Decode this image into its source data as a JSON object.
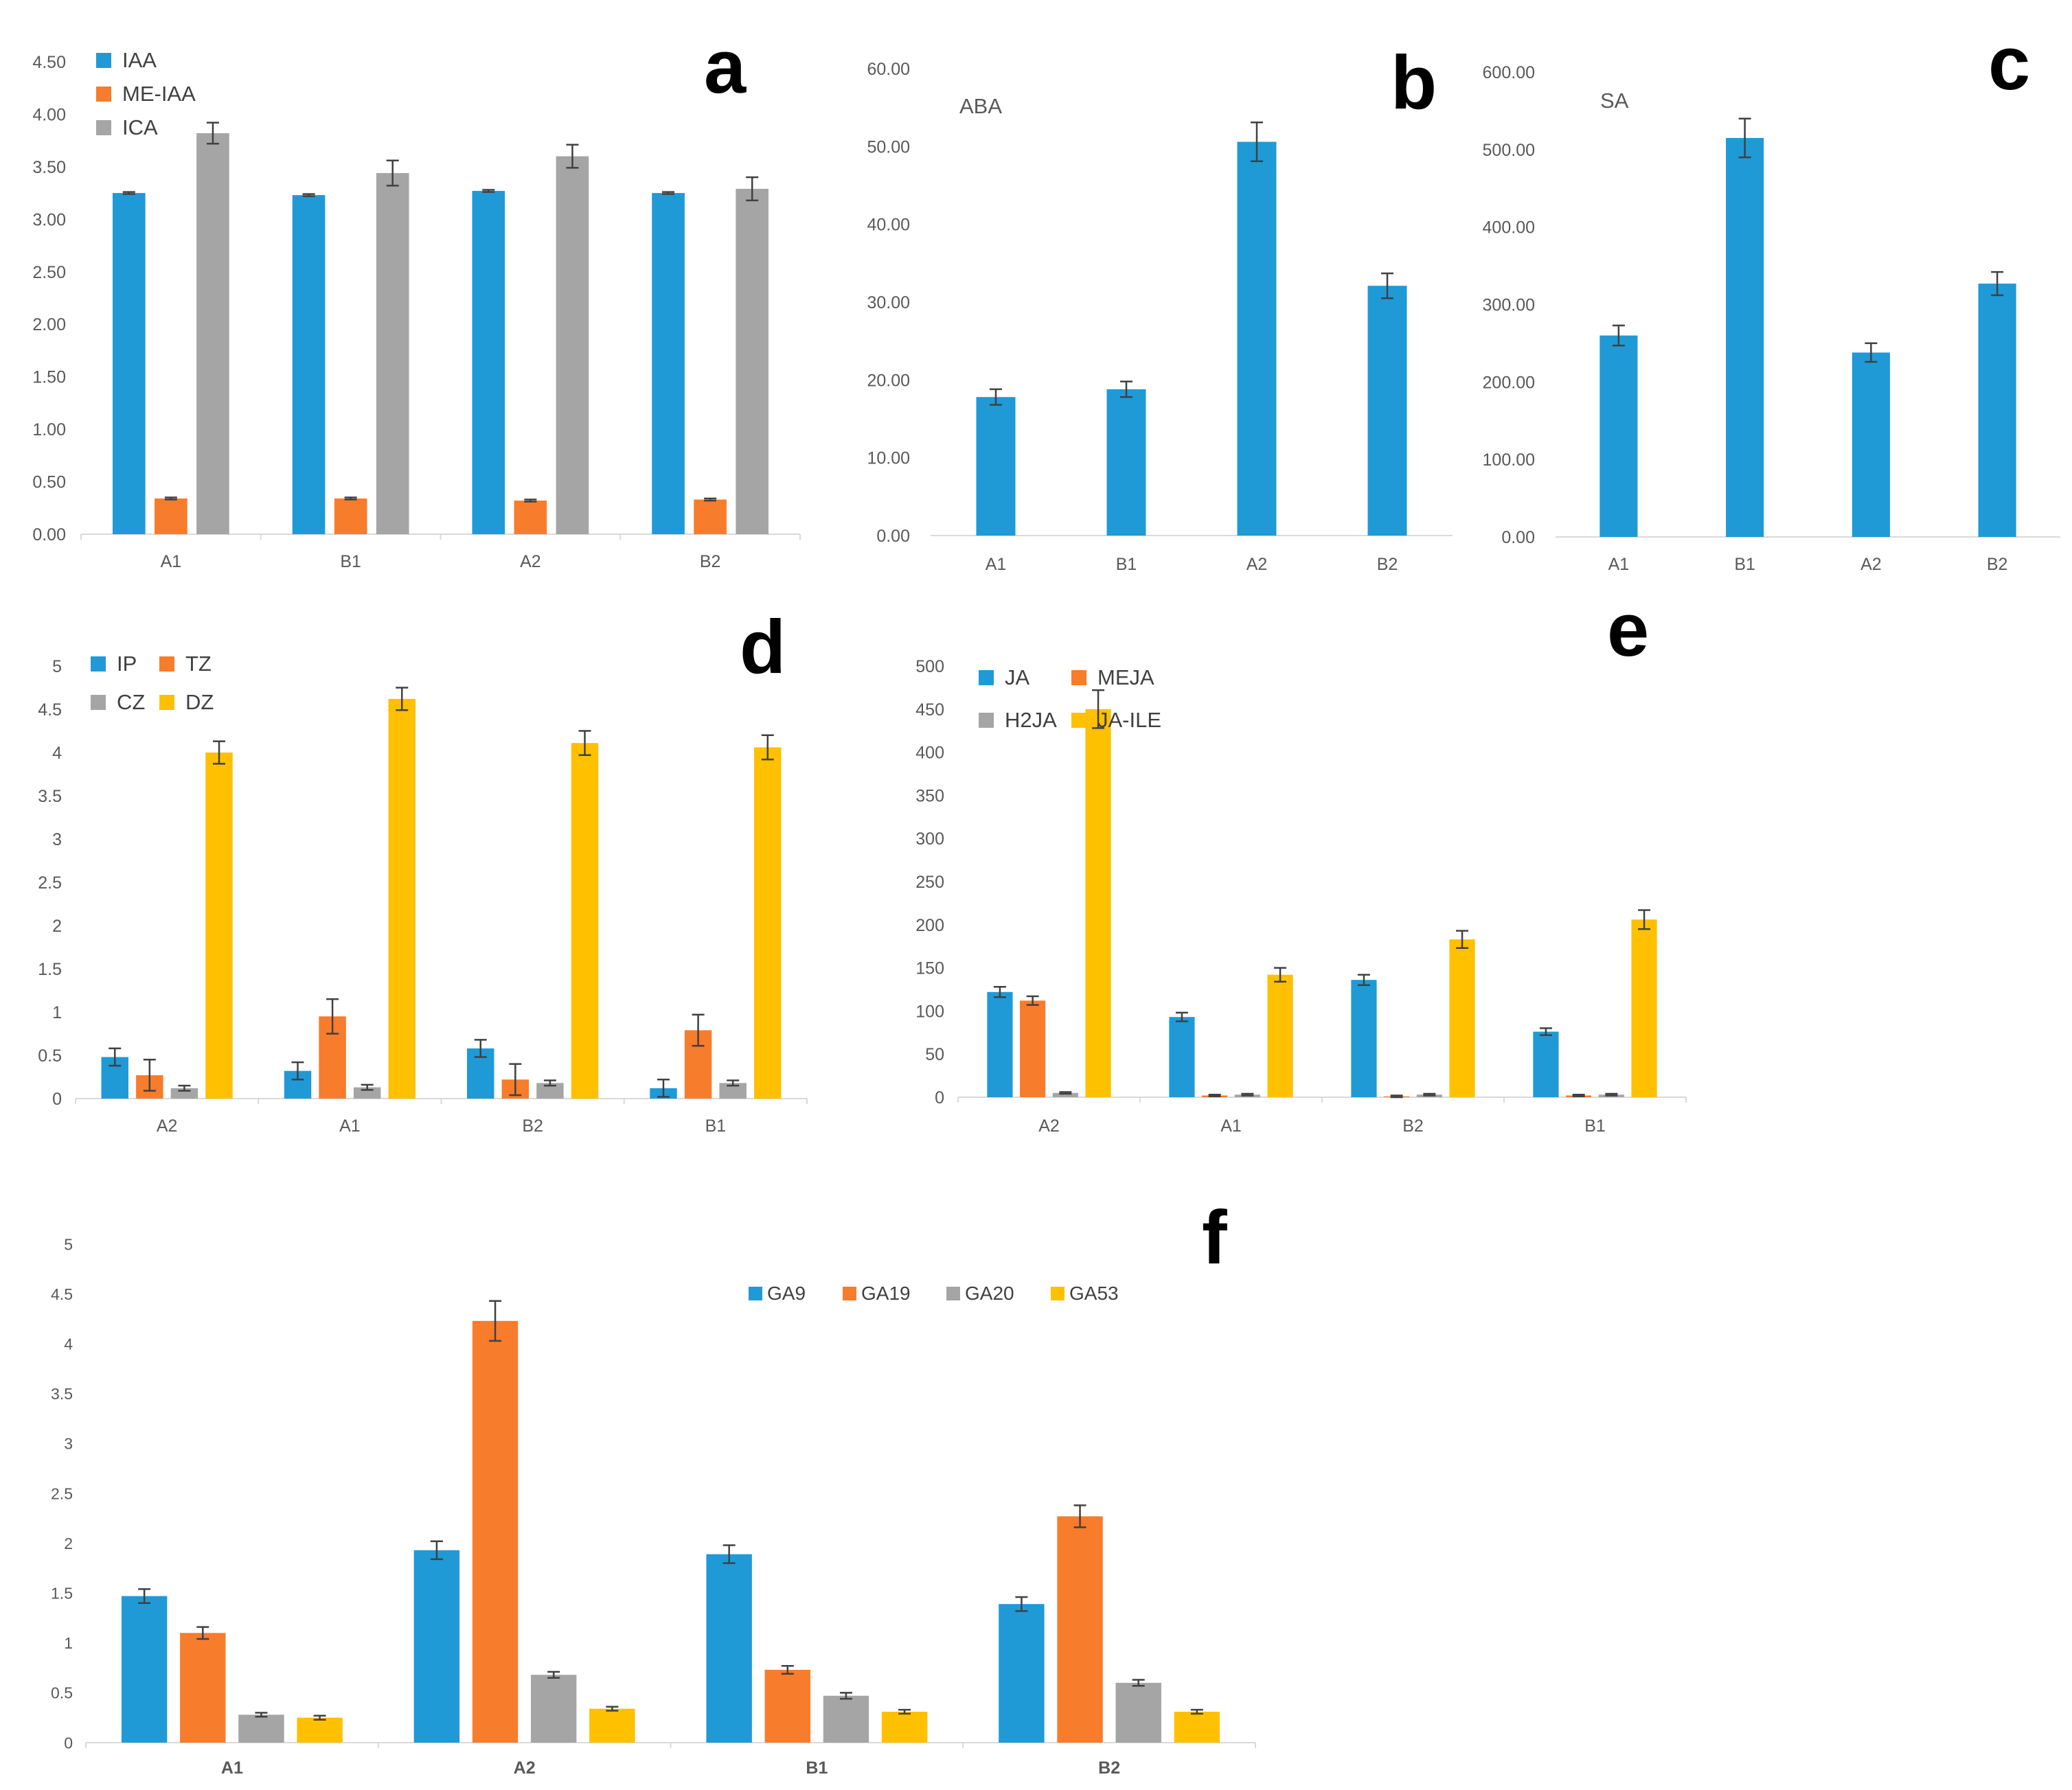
{
  "chart_data": [
    {
      "id": "a",
      "type": "bar",
      "panel_label": "a",
      "title": "",
      "categories": [
        "A1",
        "B1",
        "A2",
        "B2"
      ],
      "series": [
        {
          "name": "IAA",
          "color": "#1f9ad6",
          "values": [
            3.25,
            3.23,
            3.27,
            3.25
          ],
          "errors": [
            0.01,
            0.01,
            0.01,
            0.01
          ]
        },
        {
          "name": "ME-IAA",
          "color": "#f77c2c",
          "values": [
            0.34,
            0.34,
            0.32,
            0.33
          ],
          "errors": [
            0.01,
            0.01,
            0.01,
            0.01
          ]
        },
        {
          "name": "ICA",
          "color": "#a5a5a5",
          "values": [
            3.82,
            3.44,
            3.6,
            3.29
          ],
          "errors": [
            0.1,
            0.12,
            0.11,
            0.11
          ]
        }
      ],
      "yticks": [
        "0.00",
        "0.50",
        "1.00",
        "1.50",
        "2.00",
        "2.50",
        "3.00",
        "3.50",
        "4.00",
        "4.50"
      ],
      "ylim": [
        0,
        4.5
      ],
      "legend_position": "top-left"
    },
    {
      "id": "b",
      "type": "bar",
      "panel_label": "b",
      "title": "ABA",
      "categories": [
        "A1",
        "B1",
        "A2",
        "B2"
      ],
      "series": [
        {
          "name": "ABA",
          "color": "#1f9ad6",
          "values": [
            17.8,
            18.8,
            50.6,
            32.1
          ],
          "errors": [
            1.0,
            1.0,
            2.5,
            1.6
          ]
        }
      ],
      "yticks": [
        "0.00",
        "10.00",
        "20.00",
        "30.00",
        "40.00",
        "50.00",
        "60.00"
      ],
      "ylim": [
        0,
        60
      ],
      "legend_position": "none"
    },
    {
      "id": "c",
      "type": "bar",
      "panel_label": "c",
      "title": "SA",
      "categories": [
        "A1",
        "B1",
        "A2",
        "B2"
      ],
      "series": [
        {
          "name": "SA",
          "color": "#1f9ad6",
          "values": [
            260,
            515,
            238,
            327
          ],
          "errors": [
            13,
            25,
            12,
            15
          ]
        }
      ],
      "yticks": [
        "0.00",
        "100.00",
        "200.00",
        "300.00",
        "400.00",
        "500.00",
        "600.00"
      ],
      "ylim": [
        0,
        600
      ],
      "legend_position": "none"
    },
    {
      "id": "d",
      "type": "bar",
      "panel_label": "d",
      "title": "",
      "categories": [
        "A2",
        "A1",
        "B2",
        "B1"
      ],
      "series": [
        {
          "name": "IP",
          "color": "#1f9ad6",
          "values": [
            0.48,
            0.32,
            0.58,
            0.12
          ],
          "errors": [
            0.1,
            0.1,
            0.1,
            0.1
          ]
        },
        {
          "name": "TZ",
          "color": "#f77c2c",
          "values": [
            0.27,
            0.95,
            0.22,
            0.79
          ],
          "errors": [
            0.18,
            0.2,
            0.18,
            0.18
          ]
        },
        {
          "name": "CZ",
          "color": "#a5a5a5",
          "values": [
            0.12,
            0.13,
            0.18,
            0.18
          ],
          "errors": [
            0.03,
            0.03,
            0.03,
            0.03
          ]
        },
        {
          "name": "DZ",
          "color": "#ffc000",
          "values": [
            4.0,
            4.62,
            4.11,
            4.06
          ],
          "errors": [
            0.13,
            0.13,
            0.14,
            0.14
          ]
        }
      ],
      "yticks": [
        "0",
        "0.5",
        "1",
        "1.5",
        "2",
        "2.5",
        "3",
        "3.5",
        "4",
        "4.5",
        "5"
      ],
      "ylim": [
        0,
        5
      ],
      "legend_position": "top-left"
    },
    {
      "id": "e",
      "type": "bar",
      "panel_label": "e",
      "title": "",
      "categories": [
        "A2",
        "A1",
        "B2",
        "B1"
      ],
      "series": [
        {
          "name": "JA",
          "color": "#1f9ad6",
          "values": [
            122,
            93,
            136,
            76
          ],
          "errors": [
            6,
            5,
            6,
            4
          ]
        },
        {
          "name": "MEJA",
          "color": "#f77c2c",
          "values": [
            112,
            2,
            1,
            2
          ],
          "errors": [
            5,
            1,
            1,
            1
          ]
        },
        {
          "name": "H2JA",
          "color": "#a5a5a5",
          "values": [
            5,
            3,
            3,
            3
          ],
          "errors": [
            1,
            1,
            1,
            1
          ]
        },
        {
          "name": "JA-ILE",
          "color": "#ffc000",
          "values": [
            450,
            142,
            183,
            206
          ],
          "errors": [
            22,
            8,
            10,
            11
          ]
        }
      ],
      "yticks": [
        "0",
        "50",
        "100",
        "150",
        "200",
        "250",
        "300",
        "350",
        "400",
        "450",
        "500"
      ],
      "ylim": [
        0,
        500
      ],
      "legend_position": "top-left"
    },
    {
      "id": "f",
      "type": "bar",
      "panel_label": "f",
      "title": "",
      "categories": [
        "A1",
        "A2",
        "B1",
        "B2"
      ],
      "series": [
        {
          "name": "GA9",
          "color": "#1f9ad6",
          "values": [
            1.47,
            1.93,
            1.89,
            1.39
          ],
          "errors": [
            0.07,
            0.09,
            0.09,
            0.07
          ]
        },
        {
          "name": "GA19",
          "color": "#f77c2c",
          "values": [
            1.1,
            4.23,
            0.73,
            2.27
          ],
          "errors": [
            0.06,
            0.2,
            0.04,
            0.11
          ]
        },
        {
          "name": "GA20",
          "color": "#a5a5a5",
          "values": [
            0.28,
            0.68,
            0.47,
            0.6
          ],
          "errors": [
            0.02,
            0.03,
            0.03,
            0.03
          ]
        },
        {
          "name": "GA53",
          "color": "#ffc000",
          "values": [
            0.25,
            0.34,
            0.31,
            0.31
          ],
          "errors": [
            0.02,
            0.02,
            0.02,
            0.02
          ]
        }
      ],
      "yticks": [
        "0",
        "0.5",
        "1",
        "1.5",
        "2",
        "2.5",
        "3",
        "3.5",
        "4",
        "4.5",
        "5"
      ],
      "ylim": [
        0,
        5
      ],
      "legend_position": "top-center"
    }
  ]
}
